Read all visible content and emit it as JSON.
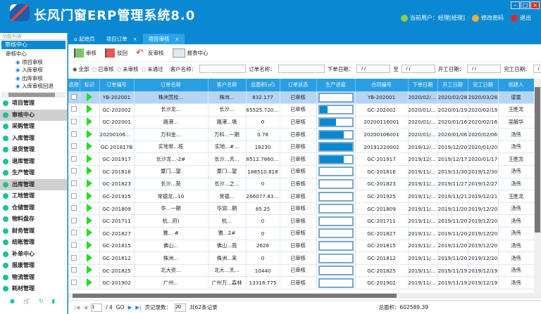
{
  "app": {
    "title": "长风门窗ERP管理系统8.0",
    "user": "当前用户：经理[经理]",
    "change_password": "修改密码",
    "logout": "退出"
  },
  "sidebar": {
    "search_placeholder": "功能列表",
    "section": "审核中心",
    "tree": {
      "root": "审核中心",
      "children": [
        "项目审核",
        "入库审核",
        "出库审核",
        "入库审核回退"
      ]
    },
    "modules": [
      "项目管理",
      "审核中心",
      "采购管理",
      "入库管理",
      "退货管理",
      "退库管理",
      "生产管理",
      "出库管理",
      "工地管理",
      "仓储管理",
      "物料盘存",
      "财务管理",
      "结账管理",
      "补单中心",
      "报废管理",
      "物流管理",
      "耗材管理"
    ],
    "selected": [
      "审核中心",
      "出库管理"
    ]
  },
  "tabs": [
    {
      "label": "起始页"
    },
    {
      "label": "项目订单"
    },
    {
      "label": "项目审核",
      "active": true
    }
  ],
  "toolbar": {
    "approve": "审核",
    "reject": "驳回",
    "unapprove": "反审核",
    "report": "报表中心"
  },
  "filter": {
    "radios": [
      "全部",
      "已审核",
      "未审核",
      "未通过"
    ],
    "selected": "全部",
    "customer_label": "客户名称：",
    "order_label": "订单名称：",
    "order_date_label": "下单日期：",
    "to_label": "至",
    "start_date_label": "开工日期：",
    "end_date_label": "完工日期：",
    "date_value": "/ /"
  },
  "table": {
    "columns": [
      "选择",
      "标识",
      "订单编号",
      "订单名称",
      "客户名称",
      "总面积(㎡)",
      "订单状态",
      "生产进度",
      "合同编号",
      "下单日期",
      "开工日期",
      "完工日期",
      "创建人"
    ],
    "rows": [
      {
        "no": "YB-202001",
        "name": "株洲赏校...",
        "cust": "株洲...",
        "area": "832.177",
        "status": "已审核",
        "progress": 0,
        "contract": "YB-202001",
        "od": "2020/02/28",
        "sd": "2020/02/28",
        "ed": "2020/03/28",
        "by": "谌雷"
      },
      {
        "no": "GC-202002",
        "name": "长沙龙...",
        "cust": "长沙...",
        "area": "65525.7200...",
        "status": "已审核",
        "progress": 25,
        "contract": "GC-202002",
        "od": "2020/01/19",
        "sd": "2020/01/19",
        "ed": "2020/02/19",
        "by": "王胜龙"
      },
      {
        "no": "GC-202001",
        "name": "路港...",
        "cust": "路港...墙",
        "area": "0",
        "status": "已审核",
        "progress": 50,
        "contract": "20200116001",
        "od": "2020/01/16",
        "sd": "2020/01/16",
        "ed": "2020/02/16",
        "by": "吴解华"
      },
      {
        "no": "20200106001",
        "name": "万科金...",
        "cust": "万科...一期",
        "area": "0.78",
        "status": "已审核",
        "progress": 75,
        "contract": "20200106001",
        "od": "2020/01/06",
        "sd": "2020/01/06",
        "ed": "2020/02/06",
        "by": "汤伟"
      },
      {
        "no": "GC-201817B",
        "name": "实地常...栋",
        "cust": "实地...#...",
        "area": "18230",
        "status": "已审核",
        "progress": 100,
        "contract": "20191220002",
        "od": "2019/12/20",
        "sd": "2019/12/20",
        "ed": "2020/01/20",
        "by": "汤伟"
      },
      {
        "no": "GC-201917",
        "name": "长沙龙...-2#",
        "cust": "长沙...天...",
        "area": "8512.78600...",
        "status": "已审核",
        "progress": 75,
        "contract": "GC-201917",
        "od": "2019/12/17",
        "sd": "2019/12/17",
        "ed": "2020/01/17",
        "by": "王胜龙"
      },
      {
        "no": "GC-201816",
        "name": "厦门...望",
        "cust": "厦门...望",
        "area": "188510.818",
        "status": "已审核",
        "progress": 0,
        "contract": "GC-201816",
        "od": "2019/11/30",
        "sd": "2019/11/30",
        "ed": "2019/12/30",
        "by": "汤伟"
      },
      {
        "no": "GC-201823",
        "name": "长沙...苑",
        "cust": "长沙...之...",
        "area": "0",
        "status": "已审核",
        "progress": 0,
        "contract": "GC-201823",
        "od": "2019/11/27",
        "sd": "2019/11/27",
        "ed": "2019/12/27",
        "by": "汤伟"
      },
      {
        "no": "GC-201925",
        "name": "常德龙...10",
        "cust": "常德...",
        "area": "266077.835...",
        "status": "已审核",
        "progress": 0,
        "contract": "GC-201925",
        "od": "2019/11/21",
        "sd": "2019/11/21",
        "ed": "2019/12/21",
        "by": "王胜龙"
      },
      {
        "no": "GC-201809",
        "name": "华...一期",
        "cust": "华润...期",
        "area": "85.25",
        "status": "已审核",
        "progress": 0,
        "contract": "GC-201809",
        "od": "2019/11/20",
        "sd": "2019/11/20",
        "ed": "2019/12/20",
        "by": "汤伟"
      },
      {
        "no": "GC-201711",
        "name": "杭...府)",
        "cust": "杭...",
        "area": "0",
        "status": "已审核",
        "progress": 0,
        "contract": "GC-201711",
        "od": "2019/11/20",
        "sd": "2019/11/20",
        "ed": "2019/12/20",
        "by": "汤伟"
      },
      {
        "no": "GC-201827",
        "name": "雅... #",
        "cust": "雅...2#",
        "area": "0",
        "status": "已审核",
        "progress": 0,
        "contract": "GC-201827",
        "od": "2019/11/20",
        "sd": "2019/11/20",
        "ed": "2019/12/20",
        "by": "汤伟"
      },
      {
        "no": "GC-201815",
        "name": "佛山...",
        "cust": "佛山...苑",
        "area": "2626",
        "status": "已审核",
        "progress": 0,
        "contract": "GC-201815",
        "od": "2019/11/20",
        "sd": "2019/11/20",
        "ed": "2019/12/20",
        "by": "汤伟"
      },
      {
        "no": "GC-201812",
        "name": "株洲...",
        "cust": "株洲...来",
        "area": "0",
        "status": "已审核",
        "progress": 0,
        "contract": "GC-201812",
        "od": "2019/11/20",
        "sd": "2019/11/20",
        "ed": "2019/12/20",
        "by": "汤伟"
      },
      {
        "no": "GC-201825",
        "name": "北大资...",
        "cust": "北大...天...",
        "area": "10440",
        "status": "已审核",
        "progress": 0,
        "contract": "GC-201825",
        "od": "2019/11/19",
        "sd": "2019/11/19",
        "ed": "2019/12/19",
        "by": "汤伟"
      },
      {
        "no": "GC-201902",
        "name": "广州...",
        "cust": "广州万...森林",
        "area": "13318.775",
        "status": "已审核",
        "progress": 0,
        "contract": "GC-201902",
        "od": "2019/11/19",
        "sd": "2019/11/19",
        "ed": "2019/12/19",
        "by": "汤伟"
      }
    ]
  },
  "pager": {
    "page": "1",
    "total_pages": "/ 4",
    "go": "GO",
    "page_size_label": "页记录数：",
    "page_size": "20",
    "total": "共62条记录",
    "area_total": "总面积：602589.39"
  },
  "colors": {
    "brand": "#0a88d2",
    "header": "#2a9ee4",
    "selected_row": "#b5d5f7",
    "flag": "#22dd22"
  }
}
